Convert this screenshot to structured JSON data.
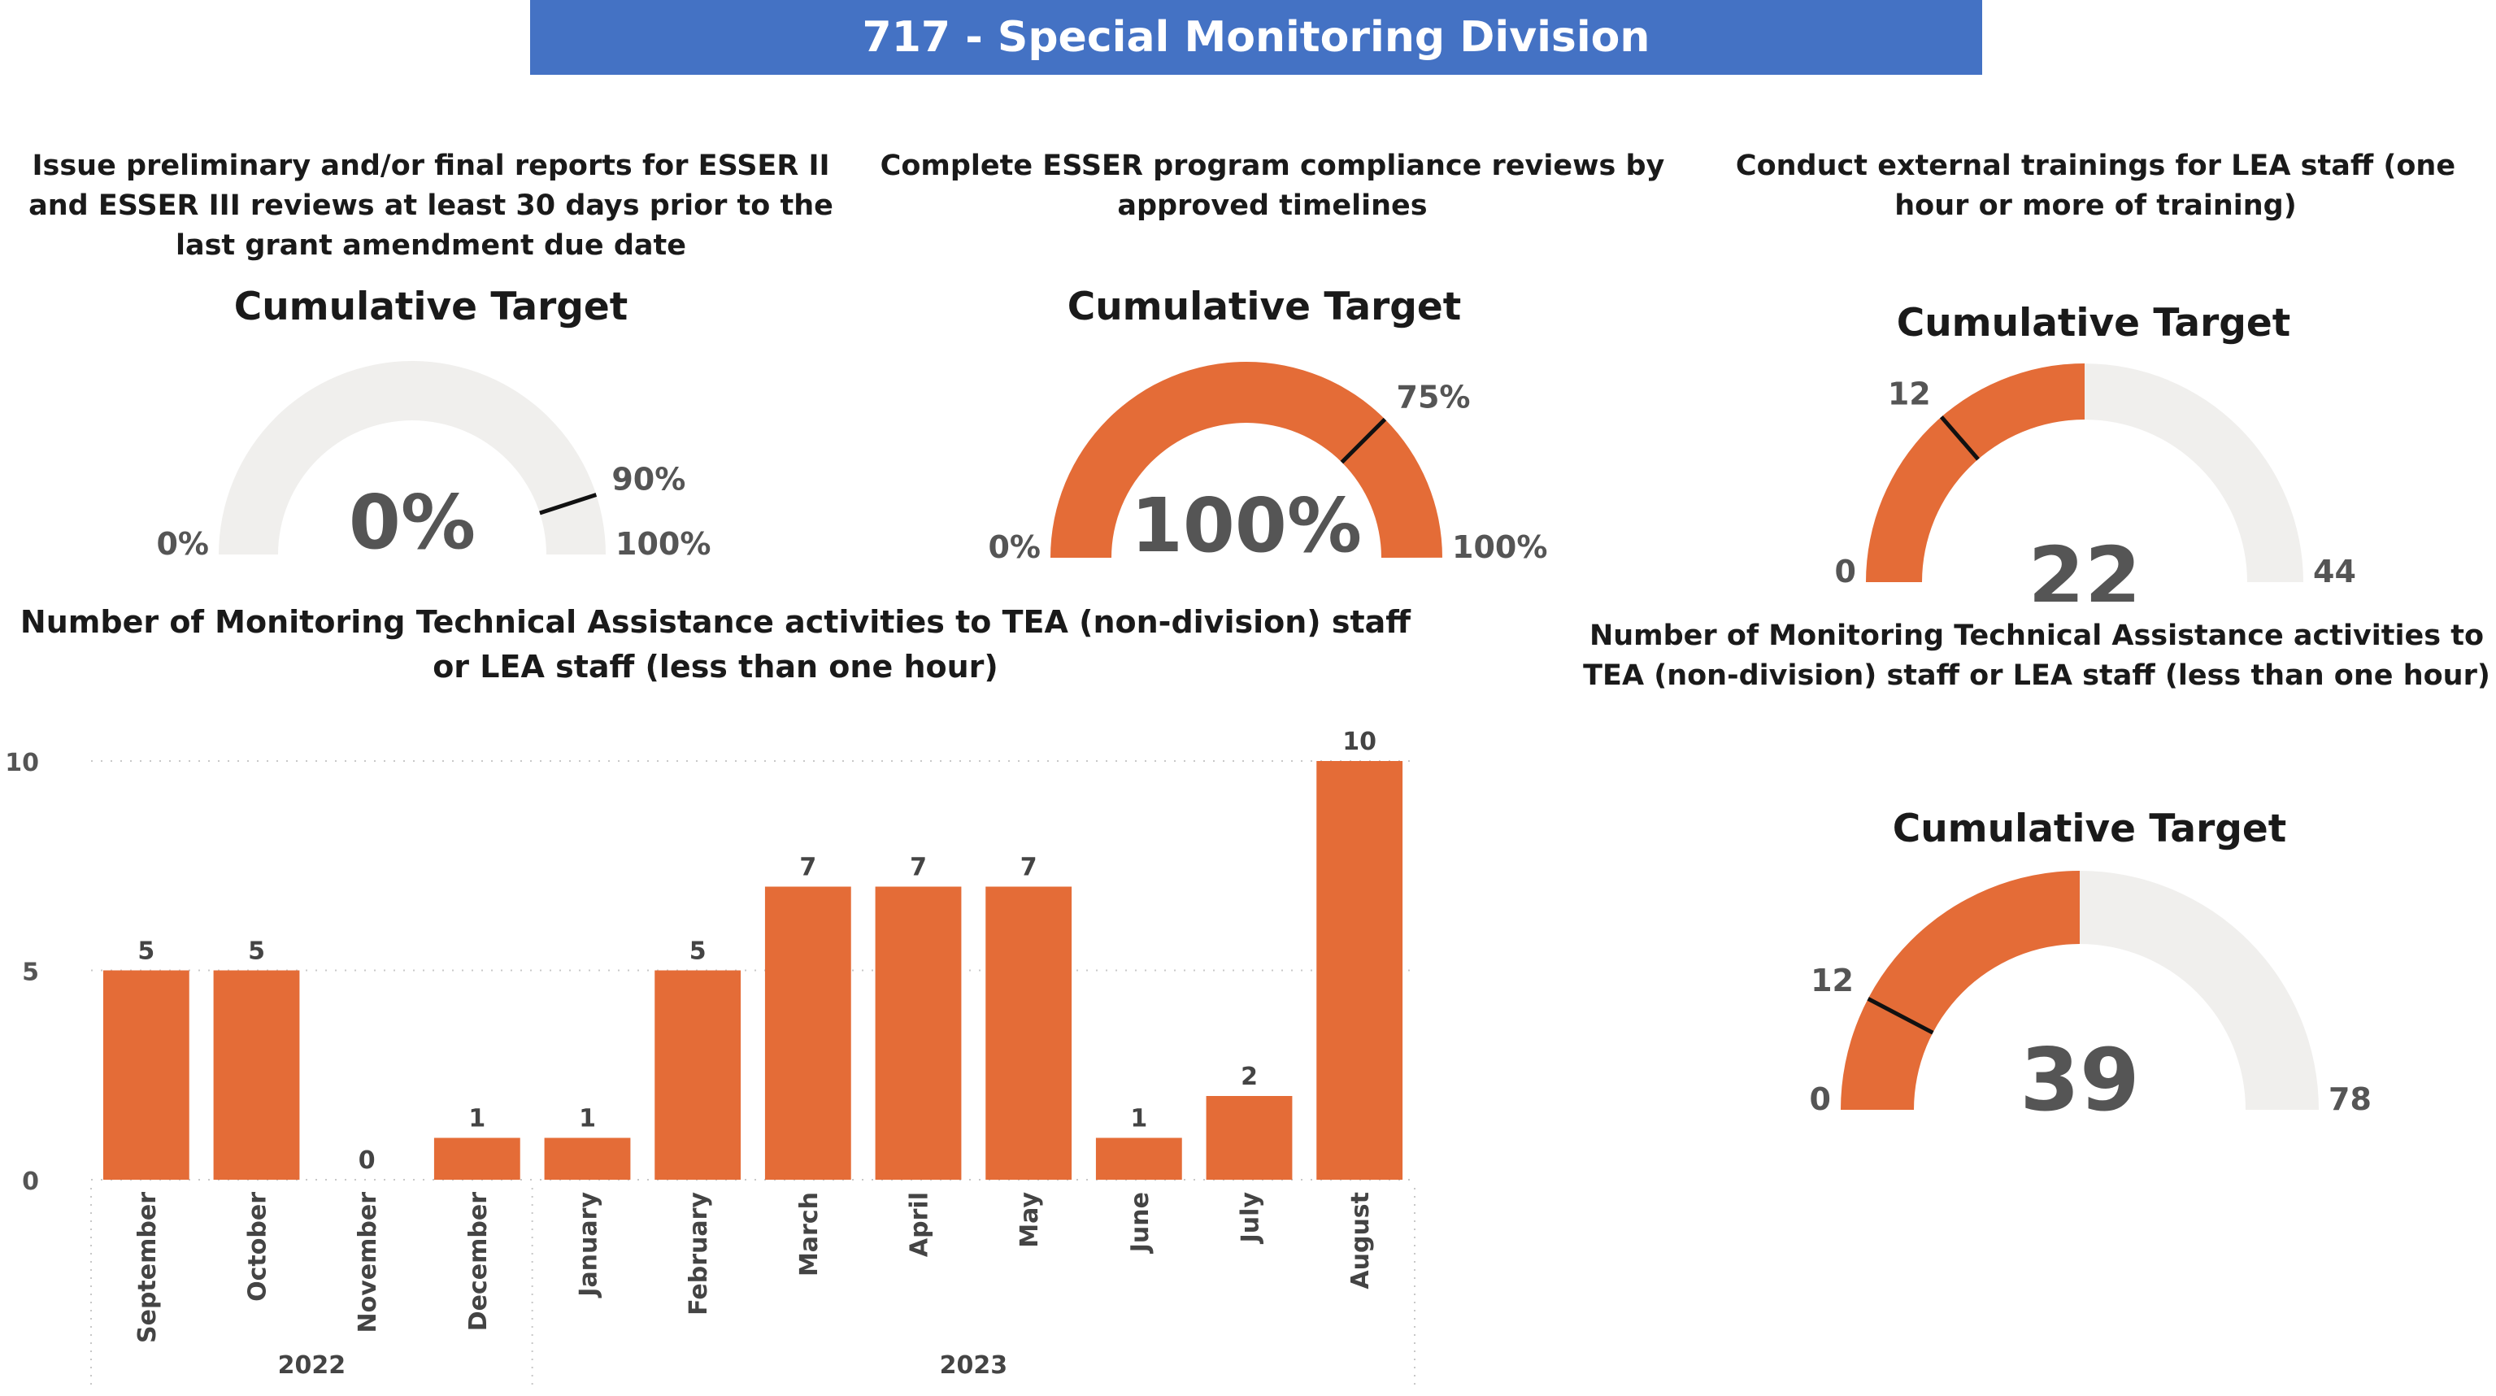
{
  "header": {
    "title": "717 - Special Monitoring Division"
  },
  "kpis": [
    {
      "title": "Issue preliminary and/or final reports for ESSER II and ESSER III reviews at least 30 days prior to the last grant amendment due date",
      "label": "Cumulative Target",
      "display_value": "0%",
      "value": 0,
      "min": 0,
      "max": 100,
      "target": 90,
      "min_label": "0%",
      "max_label": "100%",
      "target_label": "90%"
    },
    {
      "title": "Complete ESSER program compliance reviews by approved timelines",
      "label": "Cumulative Target",
      "display_value": "100%",
      "value": 100,
      "min": 0,
      "max": 100,
      "target": 75,
      "min_label": "0%",
      "max_label": "100%",
      "target_label": "75%"
    },
    {
      "title": "Conduct external trainings for LEA staff (one hour or more of training)",
      "label": "Cumulative Target",
      "display_value": "22",
      "value": 22,
      "min": 0,
      "max": 44,
      "target": 12,
      "min_label": "0",
      "max_label": "44",
      "target_label": "12"
    },
    {
      "title": "Number of Monitoring Technical Assistance activities to TEA (non-division) staff or LEA staff (less than one hour)",
      "label": "Cumulative Target",
      "display_value": "39",
      "value": 39,
      "min": 0,
      "max": 78,
      "target": 12,
      "min_label": "0",
      "max_label": "78",
      "target_label": "12"
    }
  ],
  "colors": {
    "accent": "#e46c37",
    "track": "#f0efed",
    "banner": "#4472c4",
    "text": "#555555"
  },
  "chart_data": {
    "type": "bar",
    "title": "Number of Monitoring Technical Assistance activities to TEA (non-division) staff or LEA staff (less than one hour)",
    "categories": [
      "September",
      "October",
      "November",
      "December",
      "January",
      "February",
      "March",
      "April",
      "May",
      "June",
      "July",
      "August"
    ],
    "years": [
      {
        "label": "2022",
        "count": 4
      },
      {
        "label": "2023",
        "count": 8
      }
    ],
    "values": [
      5,
      5,
      0,
      1,
      1,
      5,
      7,
      7,
      7,
      1,
      2,
      10
    ],
    "yticks": [
      0,
      5,
      10
    ],
    "ylim": [
      0,
      10
    ],
    "xlabel": "",
    "ylabel": "",
    "grid": true,
    "data_labels": true
  }
}
